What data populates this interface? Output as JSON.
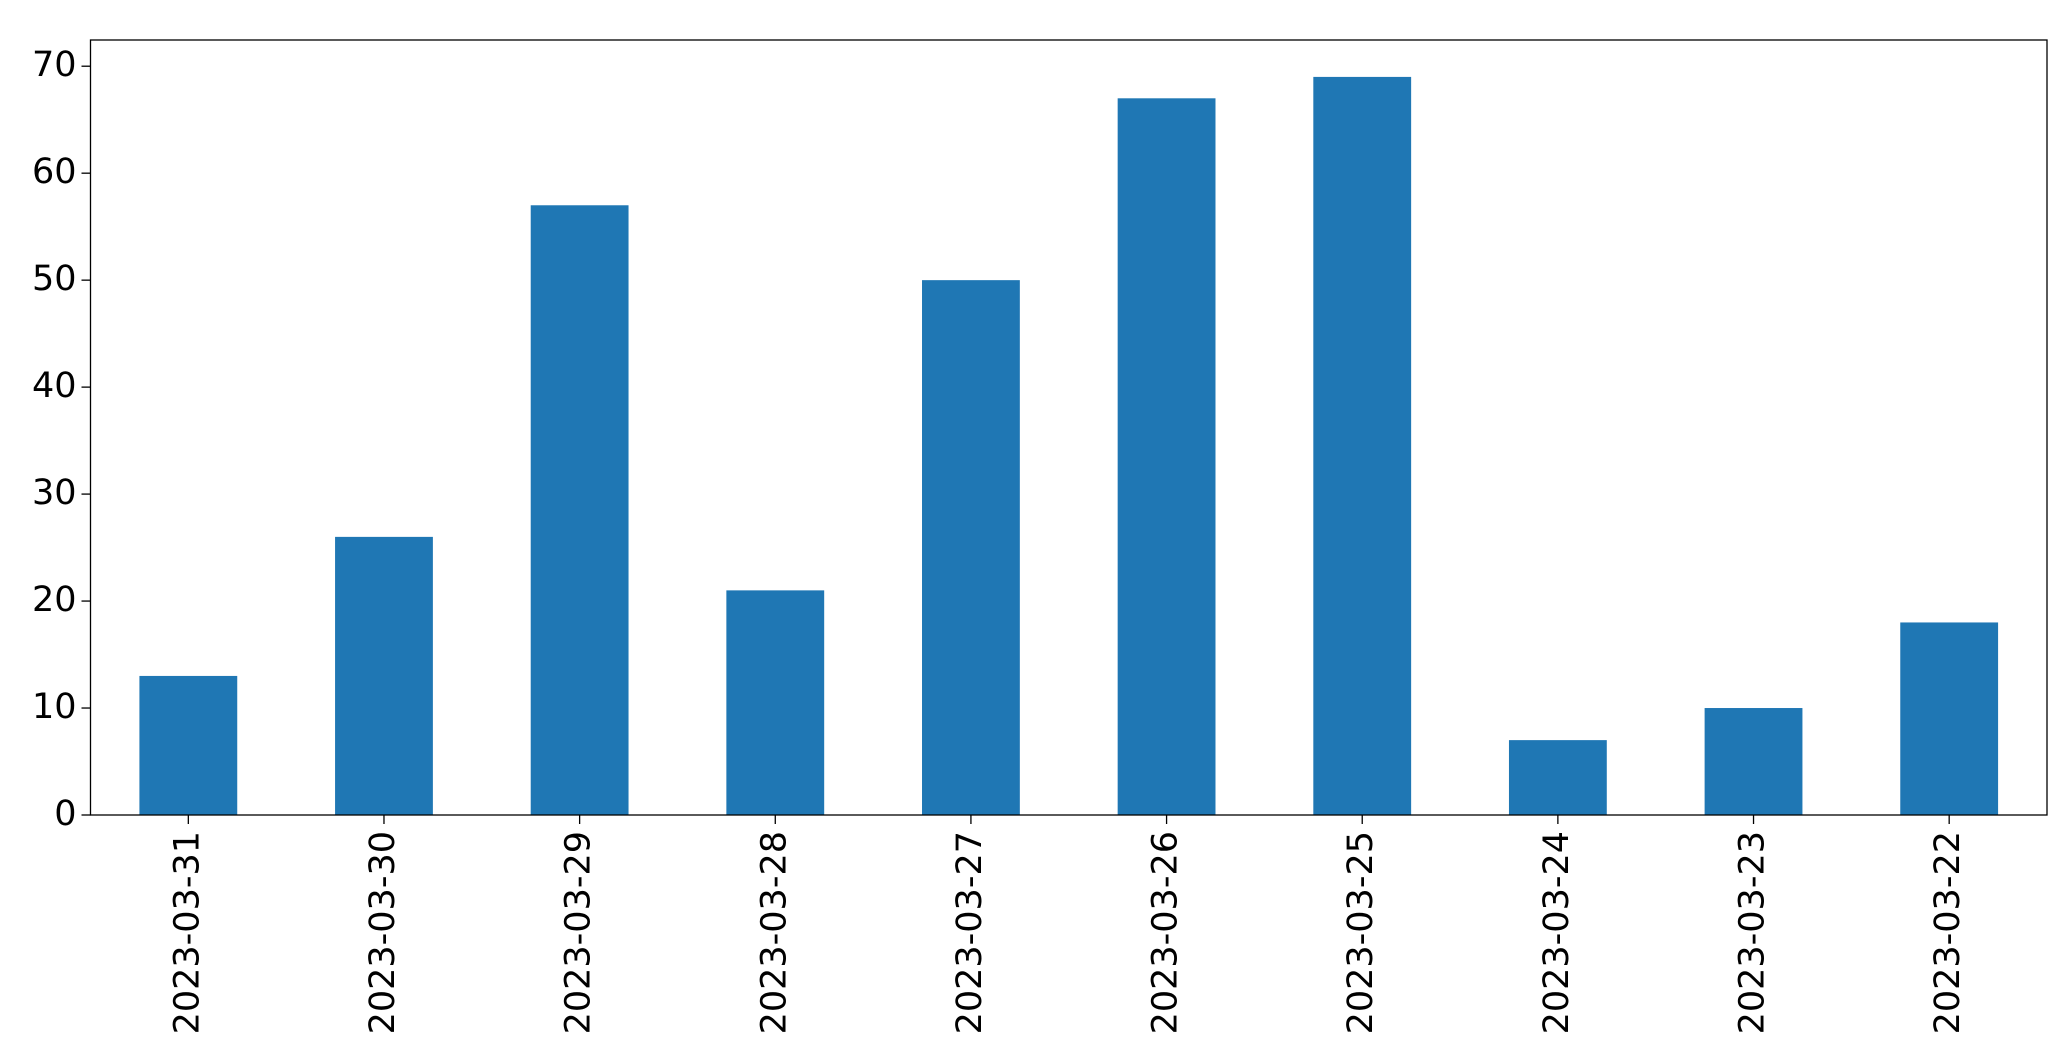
{
  "chart_data": {
    "type": "bar",
    "categories": [
      "2023-03-31",
      "2023-03-30",
      "2023-03-29",
      "2023-03-28",
      "2023-03-27",
      "2023-03-26",
      "2023-03-25",
      "2023-03-24",
      "2023-03-23",
      "2023-03-22"
    ],
    "values": [
      13,
      26,
      57,
      21,
      50,
      67,
      69,
      7,
      10,
      18
    ],
    "color": "#1f77b4",
    "ylim": [
      0,
      72.45
    ],
    "yticks": [
      0,
      10,
      20,
      30,
      40,
      50,
      60,
      70
    ],
    "grid": false
  }
}
